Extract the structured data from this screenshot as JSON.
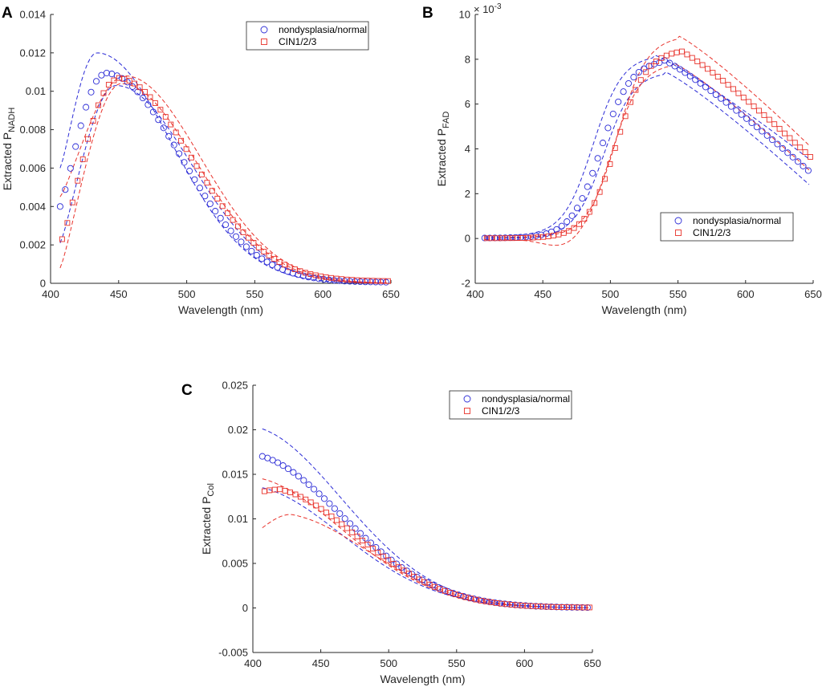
{
  "chart_data": [
    {
      "panel": "A",
      "type": "line",
      "xlabel": "Wavelength (nm)",
      "ylabel_main": "Extracted P",
      "ylabel_sub": "NADH",
      "xlim": [
        400,
        650
      ],
      "ylim": [
        0,
        0.014
      ],
      "xticks": [
        400,
        450,
        500,
        550,
        600,
        650
      ],
      "yticks": [
        0,
        0.002,
        0.004,
        0.006,
        0.008,
        0.01,
        0.012,
        0.014
      ],
      "ytick_labels": [
        "0",
        "0.002",
        "0.004",
        "0.006",
        "0.008",
        "0.01",
        "0.012",
        "0.014"
      ],
      "exponent_label": "",
      "legend": [
        "nondysplasia/normal",
        "CIN1/2/3"
      ],
      "legend_position": "top-right",
      "series": [
        {
          "name": "nondysplasia/normal",
          "color": "#2b2bd6",
          "marker": "circle",
          "peak_x": 440,
          "peak_y": 0.0109,
          "start_y": 0.004,
          "tail_y": 5e-05
        },
        {
          "name": "CIN1/2/3",
          "color": "#e8322b",
          "marker": "square",
          "peak_x": 447,
          "peak_y": 0.0106,
          "start_y": 0.0023,
          "tail_y": 0.0001
        }
      ],
      "bounds": [
        {
          "color": "#2b2bd6",
          "type": "upper",
          "start_y": 0.006,
          "peak_x": 434,
          "peak_y": 0.012
        },
        {
          "color": "#2b2bd6",
          "type": "lower",
          "start_y": 0.0021,
          "peak_x": 448,
          "peak_y": 0.0103
        },
        {
          "color": "#e8322b",
          "type": "upper",
          "start_y": 0.0045,
          "peak_x": 455,
          "peak_y": 0.0108
        },
        {
          "color": "#e8322b",
          "type": "lower",
          "start_y": 0.0008,
          "peak_x": 452,
          "peak_y": 0.0104
        }
      ]
    },
    {
      "panel": "B",
      "type": "line",
      "xlabel": "Wavelength (nm)",
      "ylabel_main": "Extracted P",
      "ylabel_sub": "FAD",
      "xlim": [
        400,
        650
      ],
      "ylim": [
        -2,
        10
      ],
      "xticks": [
        400,
        450,
        500,
        550,
        600,
        650
      ],
      "yticks": [
        -2,
        0,
        2,
        4,
        6,
        8,
        10
      ],
      "ytick_labels": [
        "-2",
        "0",
        "2",
        "4",
        "6",
        "8",
        "10"
      ],
      "exponent_label": "× 10",
      "exponent_power": "-3",
      "legend": [
        "nondysplasia/normal",
        "CIN1/2/3"
      ],
      "legend_position": "lower-right",
      "series": [
        {
          "name": "nondysplasia/normal",
          "color": "#2b2bd6",
          "marker": "circle",
          "peak_x": 538,
          "peak_y": 8.0,
          "start_y": 0.02,
          "end_y": 2.95
        },
        {
          "name": "CIN1/2/3",
          "color": "#e8322b",
          "marker": "square",
          "peak_x": 548,
          "peak_y": 8.45,
          "start_y": 0.01,
          "end_y": 3.55
        }
      ],
      "bounds": [
        {
          "color": "#2b2bd6",
          "type": "upper",
          "start_y": 0.1,
          "peak_x": 532,
          "peak_y": 8.2,
          "end_y": 3.5
        },
        {
          "color": "#2b2bd6",
          "type": "lower",
          "start_y": 0.0,
          "peak_x": 540,
          "peak_y": 7.45,
          "end_y": 2.35
        },
        {
          "color": "#e8322b",
          "type": "upper",
          "start_y": 0.05,
          "peak_x": 550,
          "peak_y": 9.05,
          "end_y": 4.1
        },
        {
          "color": "#e8322b",
          "type": "lower",
          "start_y": -0.05,
          "peak_x": 546,
          "peak_y": 7.85,
          "end_y": 3.0
        }
      ]
    },
    {
      "panel": "C",
      "type": "line",
      "xlabel": "Wavelength (nm)",
      "ylabel_main": "Extracted P",
      "ylabel_sub": "Col",
      "xlim": [
        400,
        650
      ],
      "ylim": [
        -0.005,
        0.025
      ],
      "xticks": [
        400,
        450,
        500,
        550,
        600,
        650
      ],
      "yticks": [
        -0.005,
        0,
        0.005,
        0.01,
        0.015,
        0.02,
        0.025
      ],
      "ytick_labels": [
        "-0.005",
        "0",
        "0.005",
        "0.01",
        "0.015",
        "0.02",
        "0.025"
      ],
      "exponent_label": "",
      "legend": [
        "nondysplasia/normal",
        "CIN1/2/3"
      ],
      "legend_position": "top-right",
      "series": [
        {
          "name": "nondysplasia/normal",
          "color": "#2b2bd6",
          "marker": "circle",
          "start_y": 0.017,
          "end_y": 2e-05
        },
        {
          "name": "CIN1/2/3",
          "color": "#e8322b",
          "marker": "square",
          "start_y": 0.0131,
          "peak_x": 418,
          "peak_y": 0.0133,
          "end_y": 3e-05
        }
      ],
      "bounds": [
        {
          "color": "#2b2bd6",
          "type": "upper",
          "start_y": 0.0201
        },
        {
          "color": "#2b2bd6",
          "type": "lower",
          "start_y": 0.0135
        },
        {
          "color": "#e8322b",
          "type": "upper",
          "start_y": 0.0145
        },
        {
          "color": "#e8322b",
          "type": "lower",
          "start_y": 0.009,
          "peak_x": 428,
          "peak_y": 0.0105
        }
      ]
    }
  ]
}
